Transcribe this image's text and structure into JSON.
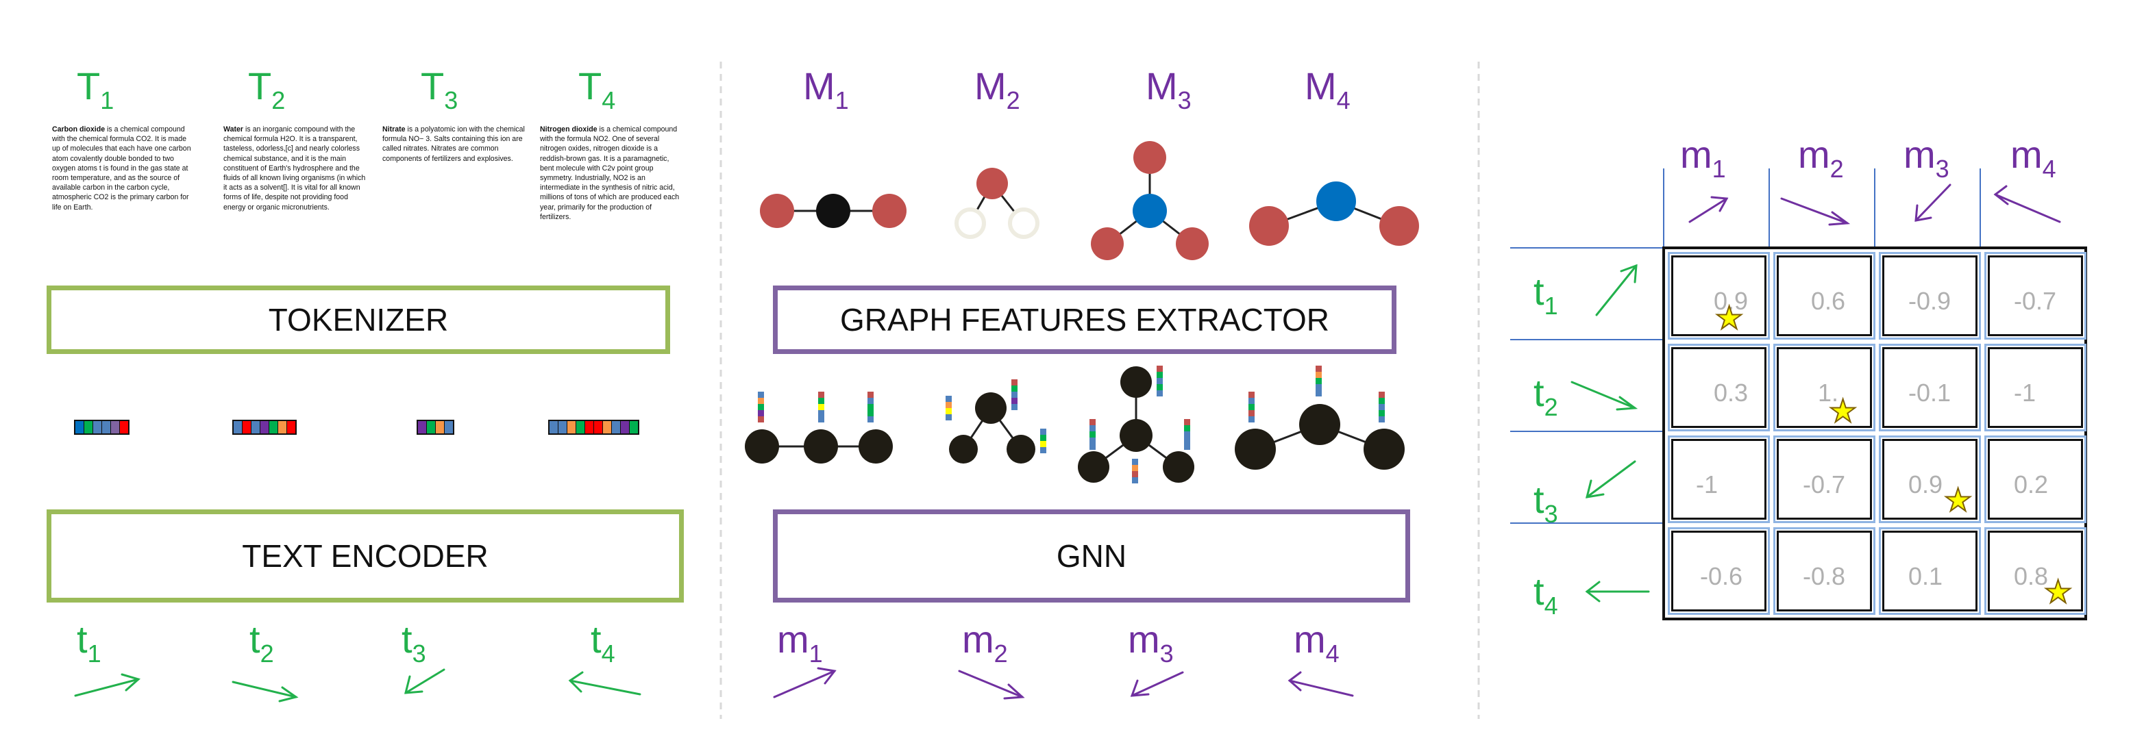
{
  "texts": {
    "T1": {
      "letter": "T",
      "sub": "1",
      "bold": "Carbon dioxide",
      "body": " is a chemical compound with the chemical formula CO2. It is made up of molecules that each have one carbon atom covalently double bonded to two oxygen atoms t is found in the gas state at room temperature, and as the source of available carbon in the carbon cycle, atmospheric CO2 is the primary carbon for life on Earth."
    },
    "T2": {
      "letter": "T",
      "sub": "2",
      "bold": "Water",
      "body": " is an inorganic compound with the chemical formula H2O. It is a transparent, tasteless, odorless,[c] and nearly colorless chemical substance, and it is the main constituent of Earth's hydrosphere and the fluids of all known living organisms (in which it acts as a solvent[]. It is vital for all known forms of life, despite not providing food energy or organic micronutrients."
    },
    "T3": {
      "letter": "T",
      "sub": "3",
      "bold": "Nitrate",
      "body": " is a polyatomic ion with the chemical formula NO− 3. Salts containing this ion are called nitrates. Nitrates are common components of fertilizers and explosives."
    },
    "T4": {
      "letter": "T",
      "sub": "4",
      "bold": "Nitrogen dioxide",
      "body": " is a chemical compound with the formula NO2. One of several nitrogen oxides, nitrogen dioxide is a reddish-brown gas. It is a paramagnetic, bent molecule with C2v point group symmetry. Industrially, NO2 is an intermediate in the synthesis of nitric acid, millions of tons of which are produced each year, primarily for the production of fertilizers."
    }
  },
  "molecules": {
    "M1": {
      "letter": "M",
      "sub": "1"
    },
    "M2": {
      "letter": "M",
      "sub": "2"
    },
    "M3": {
      "letter": "M",
      "sub": "3"
    },
    "M4": {
      "letter": "M",
      "sub": "4"
    }
  },
  "boxes": {
    "tokenizer": "TOKENIZER",
    "text_encoder": "TEXT ENCODER",
    "graph_extractor": "GRAPH FEATURES EXTRACTOR",
    "gnn": "GNN"
  },
  "text_embeddings": [
    {
      "letter": "t",
      "sub": "1"
    },
    {
      "letter": "t",
      "sub": "2"
    },
    {
      "letter": "t",
      "sub": "3"
    },
    {
      "letter": "t",
      "sub": "4"
    }
  ],
  "mol_embeddings": [
    {
      "letter": "m",
      "sub": "1"
    },
    {
      "letter": "m",
      "sub": "2"
    },
    {
      "letter": "m",
      "sub": "3"
    },
    {
      "letter": "m",
      "sub": "4"
    }
  ],
  "matrix": {
    "rows": [
      [
        "0.9",
        "0.6",
        "-0.9",
        "-0.7"
      ],
      [
        "0.3",
        "1.",
        "-0.1",
        "-1"
      ],
      [
        "-1",
        "-0.7",
        "0.9",
        "0.2"
      ],
      [
        "-0.6",
        "-0.8",
        "0.1",
        "0.8"
      ]
    ],
    "diagonal_marker": "star-icon"
  },
  "colors": {
    "green": "#22b14c",
    "purple": "#7030a0",
    "tokenizer_border": "#9bbb59",
    "graph_border": "#8064a2",
    "atom_red": "#c0504d",
    "atom_blue": "#0070c0",
    "star": "#ffff00"
  }
}
